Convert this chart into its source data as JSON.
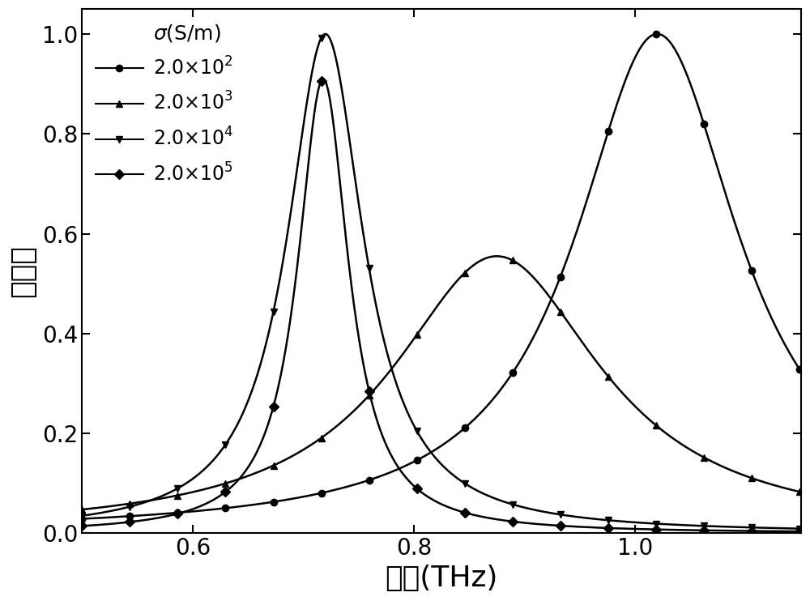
{
  "xlabel": "频率(THz)",
  "ylabel": "吸收率",
  "xlim": [
    0.5,
    1.15
  ],
  "ylim": [
    0.0,
    1.05
  ],
  "yticks": [
    0.0,
    0.2,
    0.4,
    0.6,
    0.8,
    1.0
  ],
  "xticks": [
    0.6,
    0.8,
    1.0
  ],
  "legend_title": "σ(S/m)",
  "series": [
    {
      "label": "2.0×10$^2$",
      "marker": "o",
      "peak_freq": 1.02,
      "peak_amp": 1.0,
      "gamma": 0.09,
      "color": "#000000",
      "markevery": 0.05
    },
    {
      "label": "2.0×10$^3$",
      "marker": "^",
      "peak_freq": 0.875,
      "peak_amp": 0.555,
      "gamma": 0.115,
      "color": "#000000",
      "markevery": 0.05
    },
    {
      "label": "2.0×10$^4$",
      "marker": "v",
      "peak_freq": 0.72,
      "peak_amp": 1.0,
      "gamma": 0.042,
      "color": "#000000",
      "markevery": 0.05
    },
    {
      "label": "2.0×10$^5$",
      "marker": "D",
      "peak_freq": 0.718,
      "peak_amp": 0.91,
      "gamma": 0.028,
      "color": "#000000",
      "markevery": 0.05
    }
  ],
  "background_color": "#ffffff",
  "line_color": "#000000",
  "linewidth": 1.8,
  "markersize": 6,
  "tick_labelsize": 20,
  "label_fontsize": 26,
  "legend_fontsize": 17
}
